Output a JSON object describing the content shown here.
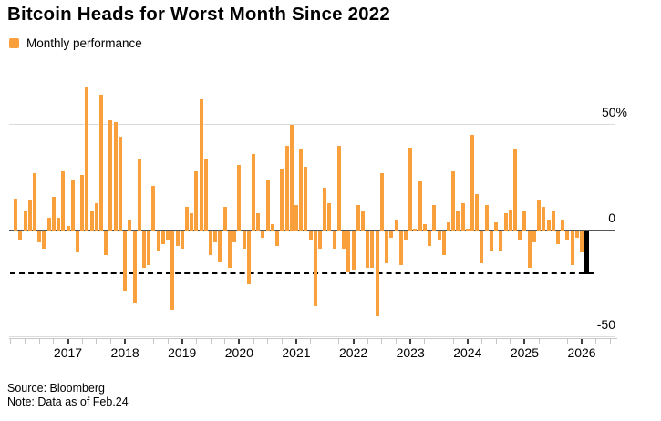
{
  "header": {
    "title": "Bitcoin Heads for Worst Month Since 2022",
    "legend_label": "Monthly performance",
    "legend_color": "#f9a03c"
  },
  "footer": {
    "source": "Source: Bloomberg",
    "note": "Note: Data as of Feb.24"
  },
  "colors": {
    "bar": "#f9a03c",
    "highlight_bar": "#000000",
    "gridline": "#dbdbdb",
    "zero_line": "#55565a",
    "reference_line": "#000000"
  },
  "chart_data": {
    "type": "bar",
    "title": "Bitcoin Heads for Worst Month Since 2022",
    "series_name": "Monthly performance",
    "unit": "%",
    "frequency": "monthly",
    "start_month": "2016-02",
    "end_month": "2026-02",
    "values": [
      15,
      -4,
      9,
      14,
      27,
      -5,
      -8,
      6,
      16,
      6,
      28,
      2,
      24,
      -10,
      26,
      68,
      9,
      13,
      64,
      -11,
      52,
      51,
      44,
      -28,
      5,
      -34,
      34,
      -17,
      -16,
      21,
      -9,
      -6,
      -4,
      -37,
      -7,
      -8,
      11,
      8,
      28,
      62,
      34,
      -11,
      -5,
      -14,
      11,
      -17,
      -5,
      31,
      -8,
      -25,
      36,
      8,
      -3,
      24,
      3,
      -7,
      29,
      40,
      50,
      12,
      38,
      30,
      -4,
      -35,
      -8,
      20,
      13,
      -8,
      40,
      -8,
      -19,
      -18,
      12,
      9,
      -17,
      -17,
      -40,
      27,
      -15,
      -3,
      5,
      -16,
      -4,
      39,
      1,
      23,
      3,
      -7,
      12,
      -4,
      -11,
      4,
      28,
      9,
      13,
      1,
      45,
      17,
      -15,
      12,
      -9,
      4,
      -9,
      8,
      10,
      38,
      -4,
      9,
      -17,
      -5,
      14,
      11,
      5,
      9,
      -6,
      5,
      -4,
      -16,
      -3,
      -10,
      -20
    ],
    "highlight_last": {
      "month": "2026-02",
      "value": -20,
      "color": "#000000"
    },
    "reference_line": {
      "value": -20,
      "style": "dashed"
    },
    "y_axis": {
      "range": [
        -50,
        50
      ],
      "grid": true,
      "ticks": [
        {
          "value": 50,
          "label": "50%"
        },
        {
          "value": 0,
          "label": "0"
        },
        {
          "value": -50,
          "label": "-50"
        }
      ]
    },
    "x_axis": {
      "year_labels": [
        "2017",
        "2018",
        "2019",
        "2020",
        "2021",
        "2022",
        "2023",
        "2024",
        "2025",
        "2026"
      ],
      "minor_tick_interval_months": 3
    }
  }
}
